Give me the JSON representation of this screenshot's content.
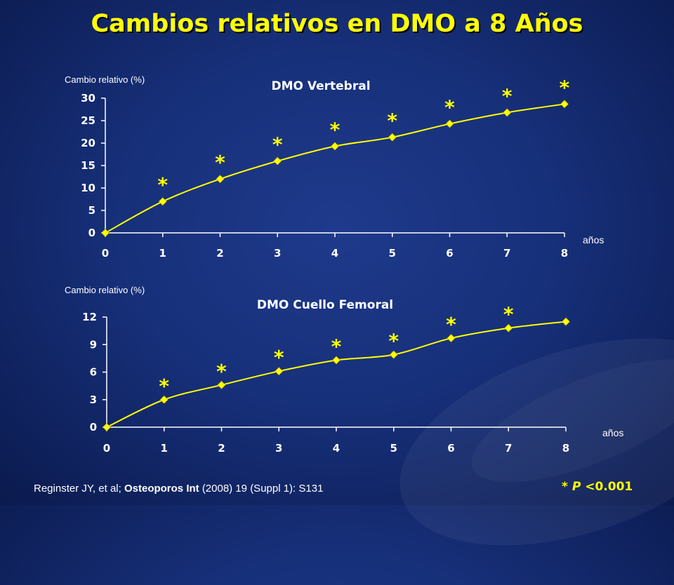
{
  "title": "Cambios relativos en DMO a 8 Años",
  "footer": {
    "ref_author": "Reginster JY, et al;",
    "ref_journal": "Osteoporos  Int",
    "ref_rest": "(2008) 19 (Suppl 1): S131",
    "sig_star": "*",
    "sig_p": "P",
    "sig_rest": "<0.001"
  },
  "colors": {
    "accent": "#ffff00",
    "background": "#17307a",
    "axis": "#ffffff"
  },
  "chart_data": [
    {
      "type": "line",
      "title": "DMO Vertebral",
      "ylabel": "Cambio relativo (%)",
      "xlabel": "años",
      "x": [
        0,
        1,
        2,
        3,
        4,
        5,
        6,
        7,
        8
      ],
      "y": [
        0,
        7,
        12,
        16,
        19.3,
        21.3,
        24.3,
        26.8,
        28.7
      ],
      "ylim": [
        0,
        30
      ],
      "yticks": [
        0,
        5,
        10,
        15,
        20,
        25,
        30
      ],
      "significant": [
        false,
        true,
        true,
        true,
        true,
        true,
        true,
        true,
        true
      ],
      "marker_label": "*"
    },
    {
      "type": "line",
      "title": "DMO Cuello Femoral",
      "ylabel": "Cambio relativo (%)",
      "xlabel": "años",
      "x": [
        0,
        1,
        2,
        3,
        4,
        5,
        6,
        7,
        8
      ],
      "y": [
        0,
        3,
        4.6,
        6.1,
        7.3,
        7.9,
        9.7,
        10.8,
        11.5
      ],
      "ylim": [
        0,
        12
      ],
      "yticks": [
        0,
        3,
        6,
        9,
        12
      ],
      "significant": [
        false,
        true,
        true,
        true,
        true,
        true,
        true,
        true,
        false
      ],
      "marker_label": "*"
    }
  ]
}
